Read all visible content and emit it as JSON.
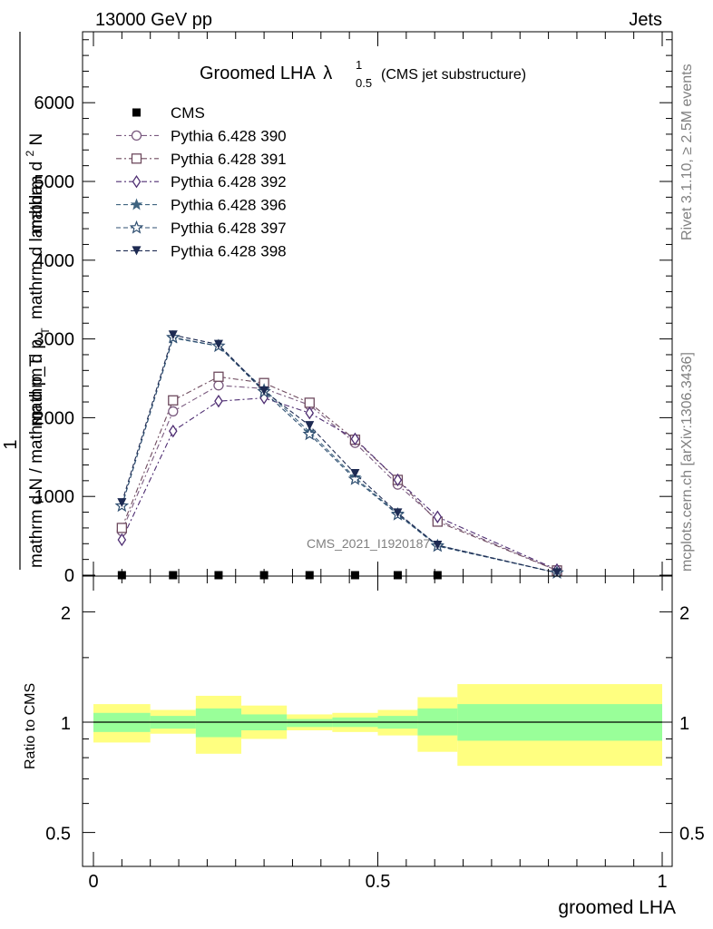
{
  "header": {
    "energy_label": "13000 GeV pp",
    "category_label": "Jets"
  },
  "side_text": {
    "rivet": "Rivet 3.1.10, ≥ 2.5M events",
    "mcplots": "mcplots.cern.ch [arXiv:1306.3436]"
  },
  "watermark": "CMS_2021_I1920187",
  "main_plot": {
    "title_main": "Groomed LHA",
    "title_lambda": "λ",
    "title_sup": "1",
    "title_sub": "0.5",
    "title_note": "(CMS jet substructure)",
    "ylabel_one": "1",
    "ylabel_den": "mathrm d N / mathrm d p_T",
    "ylabel_num": "mathrm d^2N / mathrm d p_T mathrm d lambda",
    "ylabel_num_a": "mathrm d",
    "ylabel_num_b": "N",
    "ylabel_num_c": "mathrm d p",
    "ylabel_num_d": "mathrm d lambda",
    "ylabel_sub_t": "T",
    "ylabel_sup_2": "2"
  },
  "ratio_plot": {
    "ylabel": "Ratio to CMS"
  },
  "chart_data": {
    "type": "line",
    "xlabel": "groomed LHA",
    "ylabel": "1 / (mathrm d N / mathrm d p_T) · mathrm d^2N / mathrm d p_T mathrm d lambda",
    "xlim": [
      0,
      1
    ],
    "ylim": [
      0,
      6900
    ],
    "yticks": [
      0,
      1000,
      2000,
      3000,
      4000,
      5000,
      6000
    ],
    "ytick_labels": [
      "0",
      "1000",
      "2000",
      "3000",
      "4000",
      "5000",
      "6000"
    ],
    "xticks": [
      0,
      0.5,
      1
    ],
    "xtick_labels": [
      "0",
      "0.5",
      "1"
    ],
    "legend_position": "top-left",
    "x": [
      0.05,
      0.14,
      0.22,
      0.3,
      0.38,
      0.46,
      0.535,
      0.605,
      0.815
    ],
    "cms_points": [
      {
        "x": 0.05,
        "y": 0
      },
      {
        "x": 0.14,
        "y": 0
      },
      {
        "x": 0.22,
        "y": 0
      },
      {
        "x": 0.3,
        "y": 0
      },
      {
        "x": 0.38,
        "y": 0
      },
      {
        "x": 0.46,
        "y": 0
      },
      {
        "x": 0.535,
        "y": 0
      },
      {
        "x": 0.605,
        "y": 0
      }
    ],
    "series": [
      {
        "name": "CMS",
        "color": "#000000",
        "marker": "filled-square",
        "values": [
          0,
          0,
          0,
          0,
          0,
          0,
          0,
          0,
          null
        ]
      },
      {
        "name": "Pythia 6.428 390",
        "color": "#7a5a7f",
        "marker": "open-circle",
        "dash": "6,3,2,3",
        "values": [
          560,
          2080,
          2410,
          2370,
          2160,
          1680,
          1150,
          700,
          60
        ]
      },
      {
        "name": "Pythia 6.428 391",
        "color": "#6e4a5e",
        "marker": "open-square",
        "dash": "6,3,2,3",
        "values": [
          600,
          2220,
          2520,
          2440,
          2190,
          1720,
          1210,
          680,
          60
        ]
      },
      {
        "name": "Pythia 6.428 392",
        "color": "#4e2d72",
        "marker": "open-diamond",
        "dash": "6,3,2,3",
        "values": [
          450,
          1830,
          2210,
          2250,
          2060,
          1730,
          1210,
          740,
          70
        ]
      },
      {
        "name": "Pythia 6.428 396",
        "color": "#3f6480",
        "marker": "star",
        "dash": "5,3",
        "values": [
          880,
          3010,
          2910,
          2360,
          1820,
          1240,
          780,
          380,
          30
        ]
      },
      {
        "name": "Pythia 6.428 397",
        "color": "#2e4e70",
        "marker": "open-star",
        "dash": "5,3",
        "values": [
          880,
          3020,
          2910,
          2330,
          1790,
          1220,
          770,
          370,
          30
        ]
      },
      {
        "name": "Pythia 6.428 398",
        "color": "#1d2a52",
        "marker": "filled-triangle-down",
        "dash": "5,3",
        "values": [
          920,
          3050,
          2930,
          2340,
          1900,
          1290,
          790,
          380,
          30
        ]
      }
    ],
    "ratio": {
      "ylabel": "Ratio to CMS",
      "ylim": [
        0.4,
        2.3
      ],
      "yscale": "log",
      "yticks": [
        0.5,
        1,
        2
      ],
      "ytick_labels": [
        "0.5",
        "1",
        "2"
      ],
      "reference_line": 1,
      "bins": [
        {
          "x0": 0.0,
          "x1": 0.1,
          "green": [
            0.94,
            1.06
          ],
          "yellow": [
            0.88,
            1.12
          ]
        },
        {
          "x0": 0.1,
          "x1": 0.18,
          "green": [
            0.96,
            1.04
          ],
          "yellow": [
            0.93,
            1.08
          ]
        },
        {
          "x0": 0.18,
          "x1": 0.26,
          "green": [
            0.91,
            1.09
          ],
          "yellow": [
            0.82,
            1.18
          ]
        },
        {
          "x0": 0.26,
          "x1": 0.34,
          "green": [
            0.95,
            1.05
          ],
          "yellow": [
            0.9,
            1.11
          ]
        },
        {
          "x0": 0.34,
          "x1": 0.42,
          "green": [
            0.97,
            1.02
          ],
          "yellow": [
            0.95,
            1.05
          ]
        },
        {
          "x0": 0.42,
          "x1": 0.5,
          "green": [
            0.97,
            1.03
          ],
          "yellow": [
            0.94,
            1.06
          ]
        },
        {
          "x0": 0.5,
          "x1": 0.57,
          "green": [
            0.96,
            1.04
          ],
          "yellow": [
            0.92,
            1.08
          ]
        },
        {
          "x0": 0.57,
          "x1": 0.64,
          "green": [
            0.92,
            1.09
          ],
          "yellow": [
            0.83,
            1.17
          ]
        },
        {
          "x0": 0.64,
          "x1": 1.0,
          "green": [
            0.89,
            1.12
          ],
          "yellow": [
            0.76,
            1.27
          ]
        }
      ]
    }
  }
}
